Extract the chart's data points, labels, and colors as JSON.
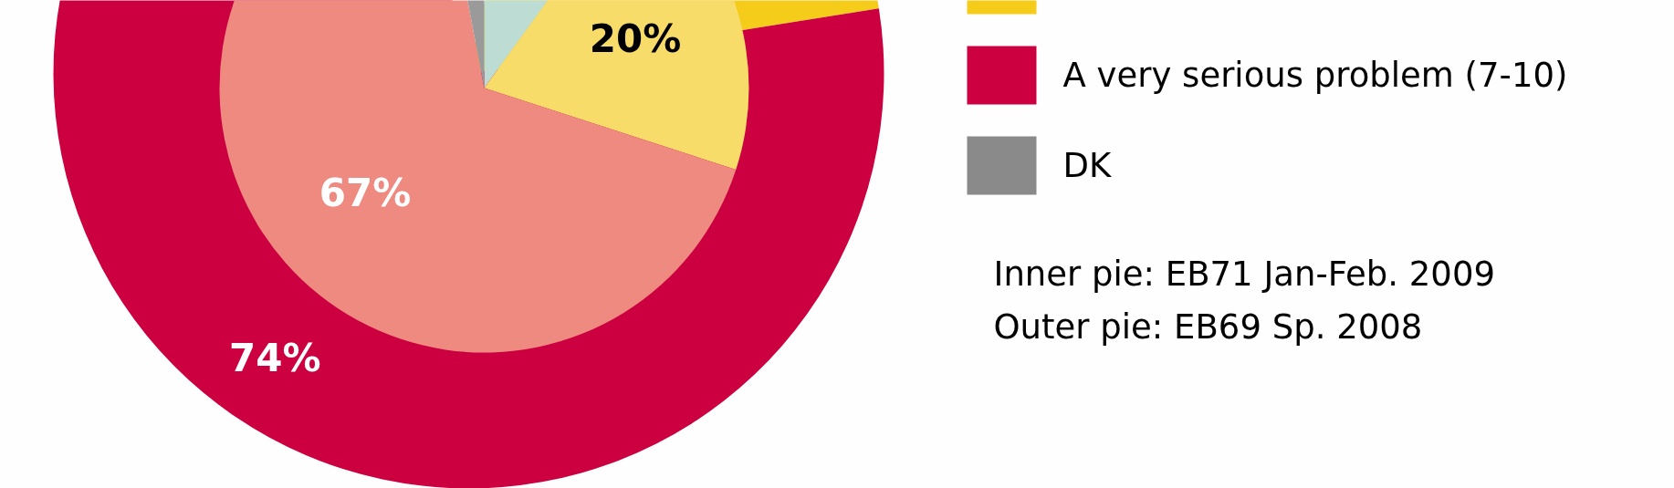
{
  "chart_data": {
    "type": "pie",
    "categories": [
      null,
      null,
      "A very serious problem (7-10)",
      "DK"
    ],
    "series": [
      {
        "values": [
          null,
          19,
          74,
          null
        ],
        "colors": [
          "#a9cfc6",
          "#f5cc1a",
          "#cc0040",
          "#8a8a8a"
        ],
        "value_labels": [
          null,
          null,
          "74%",
          null
        ]
      },
      {
        "values": [
          10,
          20,
          67,
          3
        ],
        "colors": [
          "#bcdcd4",
          "#f8dc6a",
          "#ee8a80",
          "#9a9a9a"
        ],
        "value_labels": [
          null,
          "20%",
          "67%",
          null
        ]
      }
    ],
    "legend": "right",
    "annotations": [
      "Inner pie: EB71 Jan-Feb. 2009",
      "Outer pie: EB69 Sp. 2008"
    ]
  }
}
